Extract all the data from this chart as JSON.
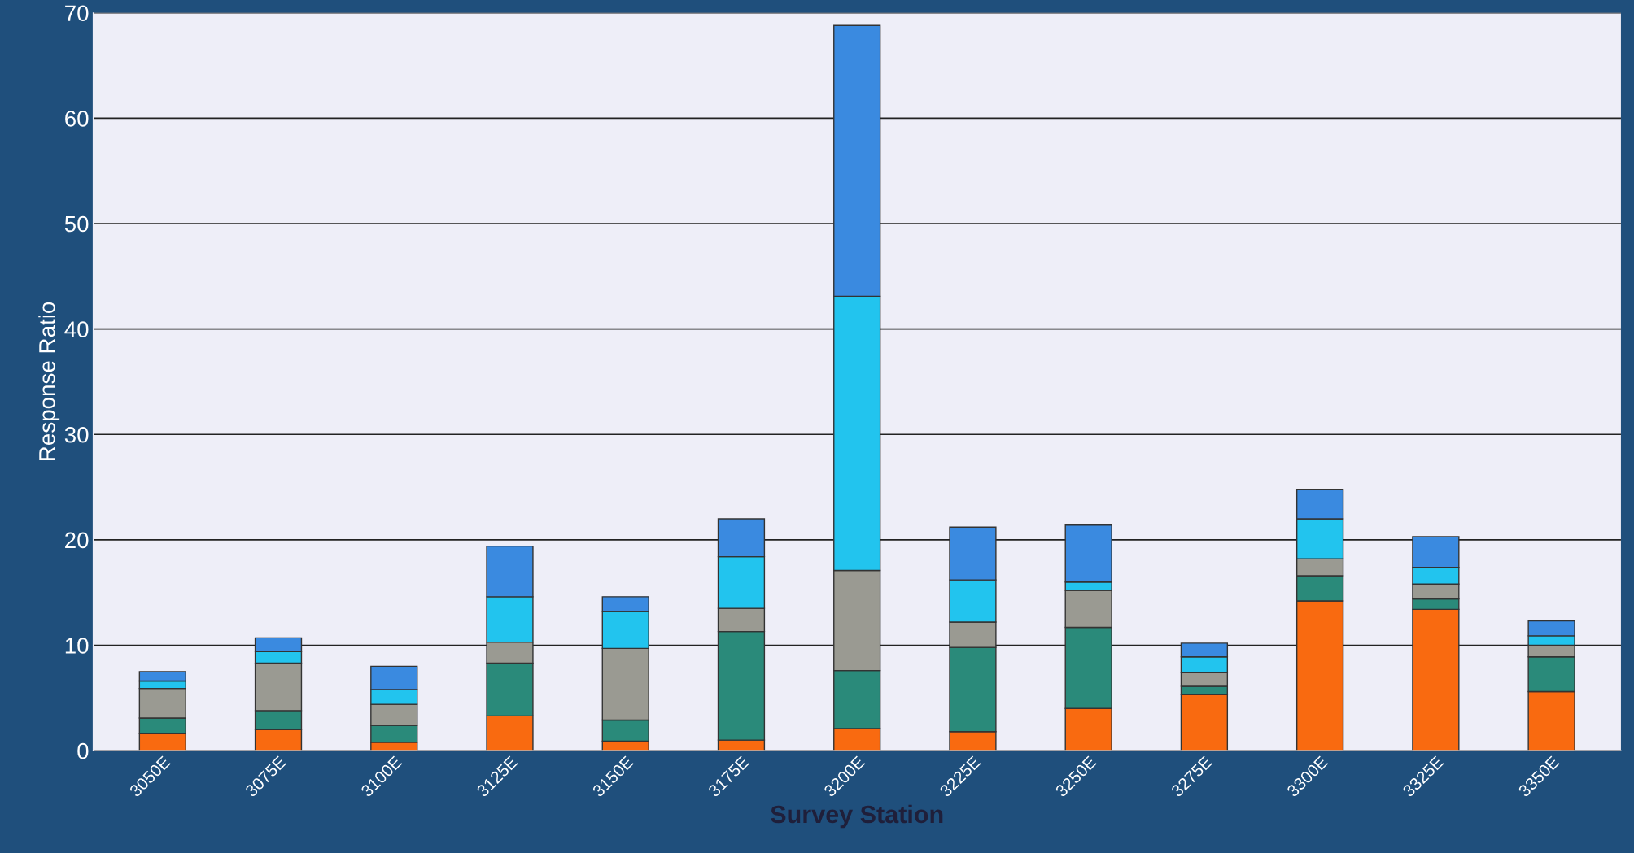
{
  "chart_data": {
    "type": "bar",
    "stacked": true,
    "xlabel": "Survey Station",
    "ylabel": "Response Ratio",
    "categories": [
      "3050E",
      "3075E",
      "3100E",
      "3125E",
      "3150E",
      "3175E",
      "3200E",
      "3225E",
      "3250E",
      "3275E",
      "3300E",
      "3325E",
      "3350E"
    ],
    "series": [
      {
        "color": "#f96a10",
        "values": [
          1.6,
          2.0,
          0.8,
          3.3,
          0.9,
          1.0,
          2.1,
          1.8,
          4.0,
          5.3,
          14.2,
          13.4,
          5.6
        ]
      },
      {
        "color": "#2a8a7a",
        "values": [
          1.5,
          1.8,
          1.6,
          5.0,
          2.0,
          10.3,
          5.5,
          8.0,
          7.7,
          0.8,
          2.4,
          1.0,
          3.3
        ]
      },
      {
        "color": "#9a9a92",
        "values": [
          2.8,
          4.5,
          2.0,
          2.0,
          6.8,
          2.2,
          9.5,
          2.4,
          3.5,
          1.3,
          1.6,
          1.4,
          1.1
        ]
      },
      {
        "color": "#22c4ee",
        "values": [
          0.7,
          1.1,
          1.4,
          4.3,
          3.5,
          4.9,
          26.0,
          4.0,
          0.8,
          1.5,
          3.8,
          1.6,
          0.9
        ]
      },
      {
        "color": "#3a8ae0",
        "values": [
          0.9,
          1.3,
          2.2,
          4.8,
          1.4,
          3.6,
          25.7,
          5.0,
          5.4,
          1.3,
          2.8,
          2.9,
          1.4
        ]
      }
    ],
    "ylim": [
      0,
      70
    ],
    "yticks": [
      0,
      10,
      20,
      30,
      40,
      50,
      60,
      70
    ],
    "grid": "y",
    "legend": false
  }
}
